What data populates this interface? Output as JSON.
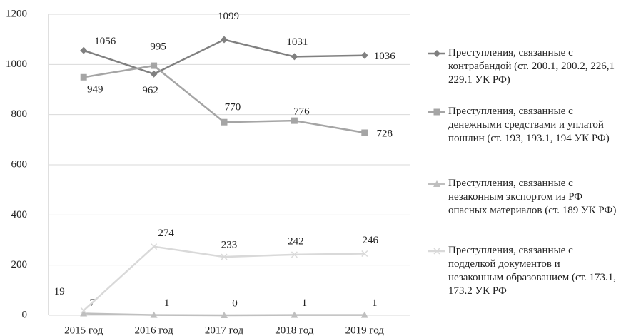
{
  "chart_data": {
    "type": "line",
    "categories": [
      "2015 год",
      "2016 год",
      "2017 год",
      "2018 год",
      "2019 год"
    ],
    "series": [
      {
        "name": "Преступления, связанные с контрабандой (ст. 200.1, 200.2, 226,1 229.1 УК РФ)",
        "color": "#808080",
        "marker": "diamond",
        "values": [
          1056,
          962,
          1099,
          1031,
          1036
        ]
      },
      {
        "name": "Преступления, связанные с денежными средствами и уплатой пошлин (ст. 193, 193.1, 194 УК РФ)",
        "color": "#a5a5a5",
        "marker": "square",
        "values": [
          949,
          995,
          770,
          776,
          728
        ]
      },
      {
        "name": "Преступления, связанные с незаконным экспортом из РФ опасных материалов (ст. 189 УК РФ)",
        "color": "#bfbfbf",
        "marker": "triangle",
        "values": [
          7,
          1,
          0,
          1,
          1
        ]
      },
      {
        "name": "Преступления, связанные с подделкой документов и незаконным образованием (ст. 173.1, 173.2 УК РФ",
        "color": "#d9d9d9",
        "marker": "x",
        "values": [
          19,
          274,
          233,
          242,
          246
        ]
      }
    ],
    "ylim": [
      0,
      1200
    ],
    "yticks": [
      0,
      200,
      400,
      600,
      800,
      1000,
      1200
    ],
    "grid": true,
    "legend": "right"
  }
}
